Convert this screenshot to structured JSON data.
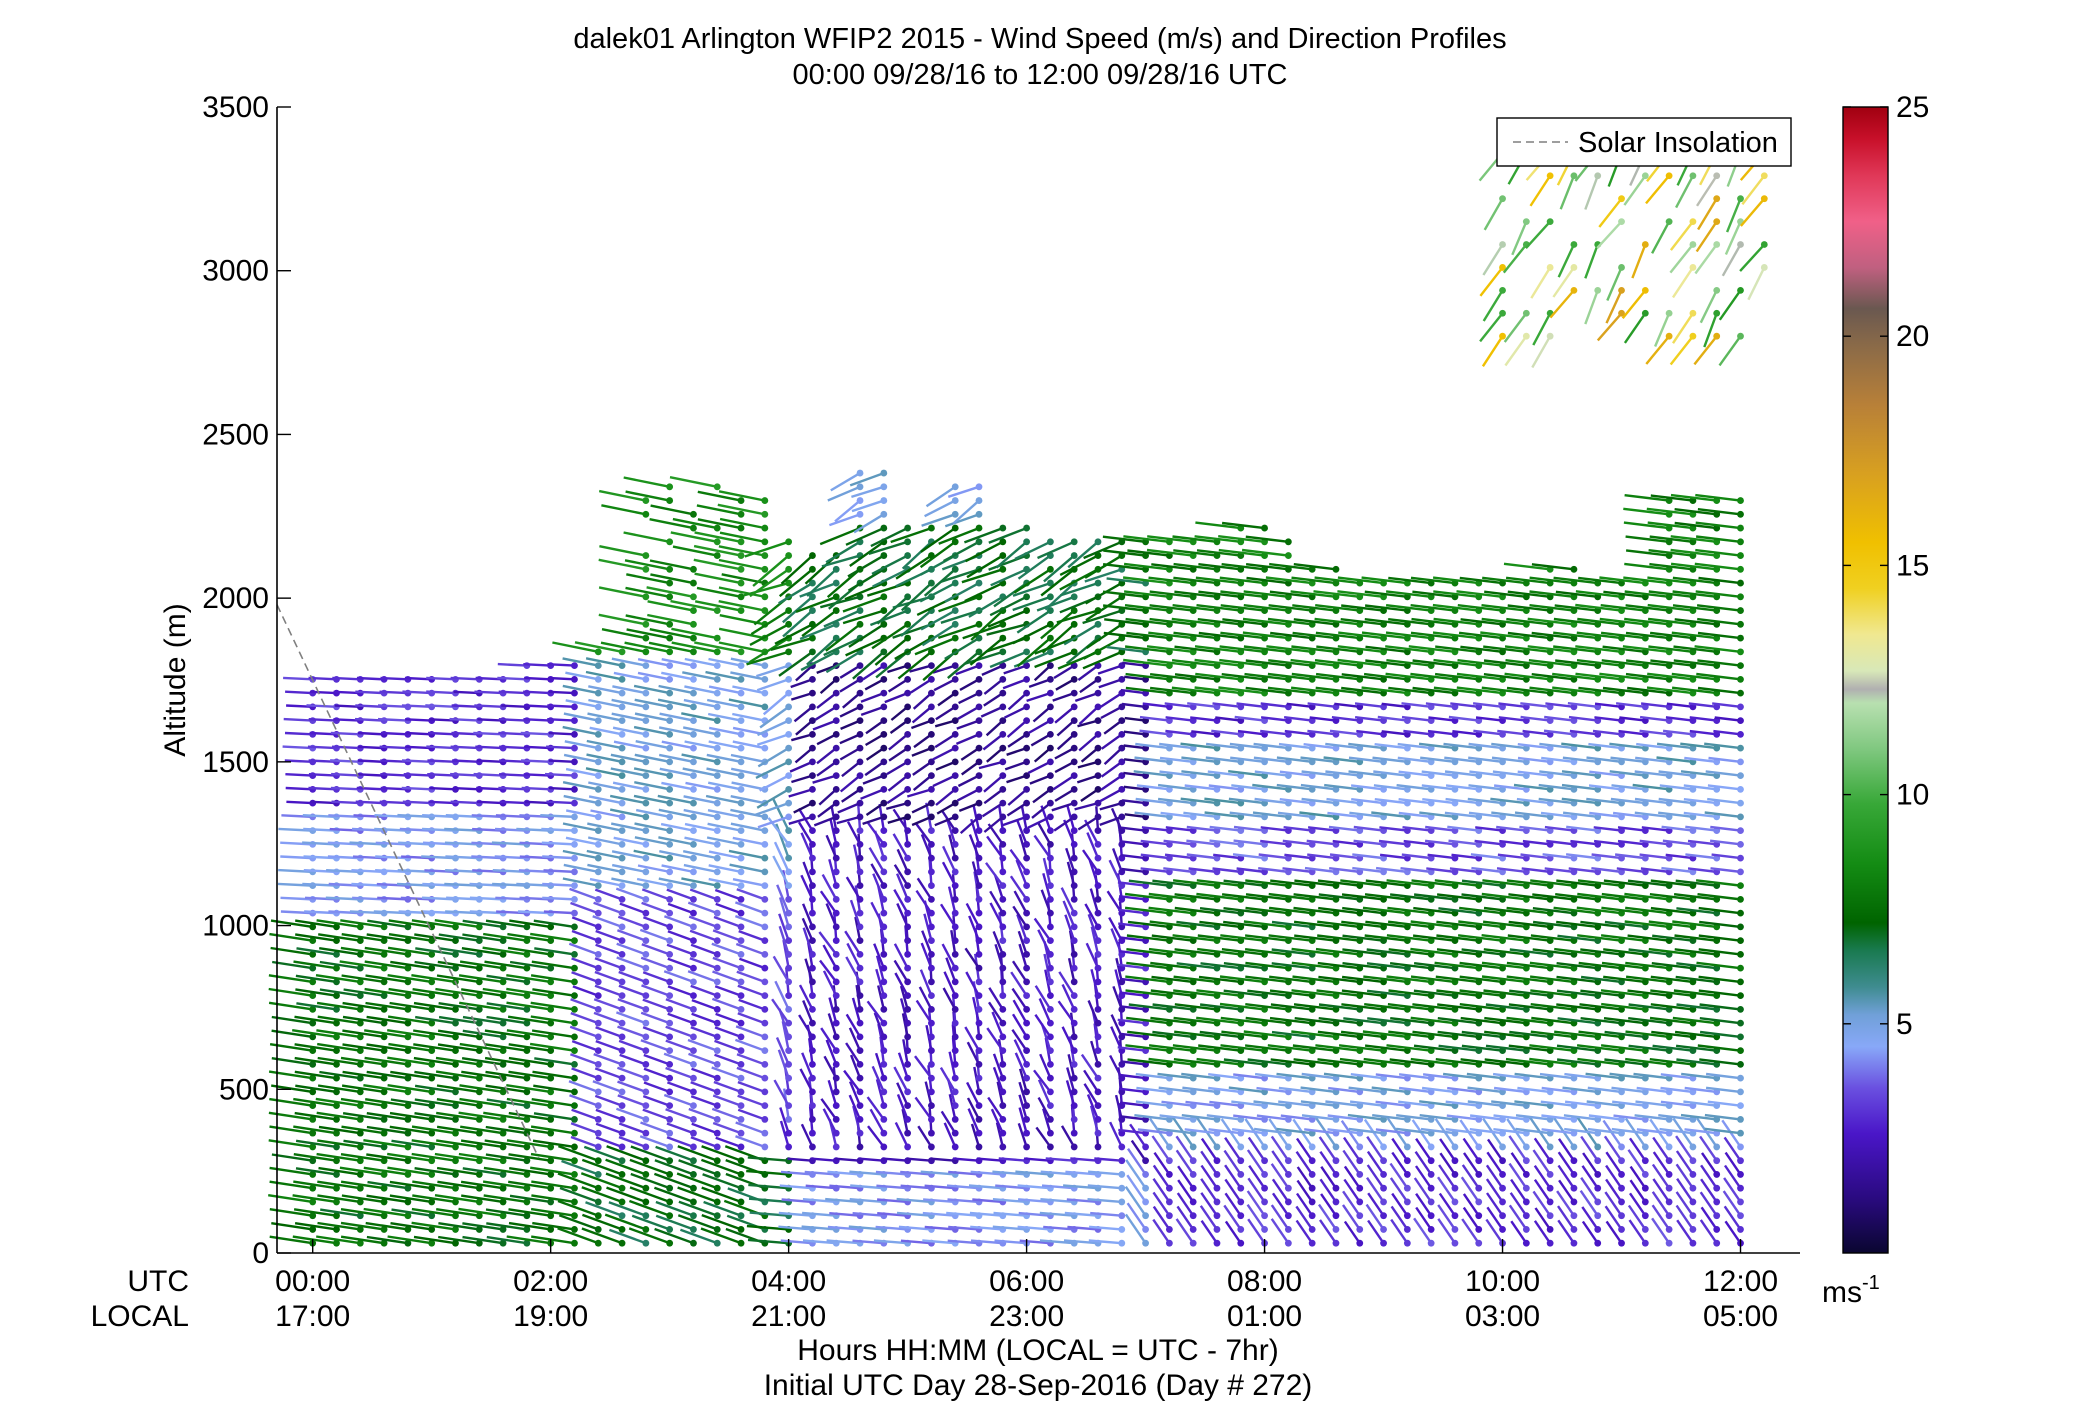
{
  "chart_data": {
    "type": "barb",
    "title": "dalek01 Arlington WFIP2 2015 - Wind Speed (m/s) and Direction Profiles",
    "subtitle": "00:00 09/28/16 to 12:00 09/28/16  UTC",
    "ylabel": "Altitude (m)",
    "xlabel": "Hours HH:MM  (LOCAL = UTC - 7hr)",
    "xlabel2": "Initial UTC Day 28-Sep-2016 (Day # 272)",
    "row_labels": {
      "utc": "UTC",
      "local": "LOCAL"
    },
    "ylim": [
      0,
      3500
    ],
    "yticks": [
      "0",
      "500",
      "1000",
      "1500",
      "2000",
      "2500",
      "3000",
      "3500"
    ],
    "ytick_values": [
      0,
      500,
      1000,
      1500,
      2000,
      2500,
      3000,
      3500
    ],
    "xlim_hours": [
      -0.3,
      12.5
    ],
    "xtick_hours": [
      0,
      2,
      4,
      6,
      8,
      10,
      12
    ],
    "xticks_utc": [
      "00:00",
      "02:00",
      "04:00",
      "06:00",
      "08:00",
      "10:00",
      "12:00"
    ],
    "xticks_local": [
      "17:00",
      "19:00",
      "21:00",
      "23:00",
      "01:00",
      "03:00",
      "05:00"
    ],
    "legend": {
      "entries": [
        "Solar Insolation"
      ],
      "placement": "top-right"
    },
    "solar_insolation": {
      "x_hours": [
        -0.3,
        1.9
      ],
      "altitude_m": [
        1980,
        290
      ],
      "style": "dashed",
      "color": "#7f7f7f"
    },
    "colorbar": {
      "range": [
        0,
        25
      ],
      "ticks": [
        "5",
        "10",
        "15",
        "20",
        "25"
      ],
      "tick_values": [
        5,
        10,
        15,
        20,
        25
      ],
      "unit": "ms",
      "unit_exp": "-1",
      "stops": [
        {
          "v": 0,
          "c": "#0a0630"
        },
        {
          "v": 1.2,
          "c": "#2a0a80"
        },
        {
          "v": 2.6,
          "c": "#4a16c8"
        },
        {
          "v": 3.6,
          "c": "#6a50e0"
        },
        {
          "v": 4.5,
          "c": "#88a8f8"
        },
        {
          "v": 5.2,
          "c": "#70a0d8"
        },
        {
          "v": 5.8,
          "c": "#3f8c90"
        },
        {
          "v": 6.6,
          "c": "#1a7a50"
        },
        {
          "v": 7.2,
          "c": "#006400"
        },
        {
          "v": 8.5,
          "c": "#148c14"
        },
        {
          "v": 9.8,
          "c": "#38a838"
        },
        {
          "v": 11.0,
          "c": "#80c880"
        },
        {
          "v": 12.0,
          "c": "#b8e0b0"
        },
        {
          "v": 12.3,
          "c": "#b0b0b0"
        },
        {
          "v": 12.7,
          "c": "#d8e8b8"
        },
        {
          "v": 13.5,
          "c": "#f0e890"
        },
        {
          "v": 14.5,
          "c": "#f0d020"
        },
        {
          "v": 15.5,
          "c": "#f0c000"
        },
        {
          "v": 17.0,
          "c": "#d8a020"
        },
        {
          "v": 18.5,
          "c": "#b88038"
        },
        {
          "v": 19.8,
          "c": "#8a6a48"
        },
        {
          "v": 20.6,
          "c": "#6a5850"
        },
        {
          "v": 21.5,
          "c": "#c06080"
        },
        {
          "v": 22.5,
          "c": "#f06088"
        },
        {
          "v": 23.5,
          "c": "#e03858"
        },
        {
          "v": 24.3,
          "c": "#c8102a"
        },
        {
          "v": 25,
          "c": "#a00010"
        }
      ]
    },
    "barbs": {
      "time_start_hours": 0,
      "time_step_hours": 0.2,
      "time_steps": 61,
      "altitude_start_m": 30,
      "altitude_step_m": 42,
      "profile_top_m": [
        1770,
        1770,
        1770,
        1770,
        1770,
        1770,
        1770,
        1780,
        1790,
        1800,
        1810,
        1810,
        1840,
        1840,
        2380,
        2380,
        2380,
        2360,
        2330,
        2300,
        2200,
        2160,
        2160,
        2400,
        2400,
        2250,
        2250,
        2380,
        2380,
        2250,
        2250,
        2190,
        2190,
        2190,
        2190,
        2190,
        2190,
        2190,
        2200,
        2250,
        2250,
        2200,
        2120,
        2120,
        2080,
        2080,
        2080,
        2080,
        2080,
        2080,
        2080,
        2080,
        2120,
        2120,
        2080,
        2080,
        2080,
        2330,
        2330,
        2330,
        2330
      ],
      "upper_cluster": {
        "time_hours": [
          10.0,
          12.2
        ],
        "altitude_m": [
          2800,
          3450
        ],
        "speed_range_ms": [
          9,
          17
        ]
      },
      "speed_regimes": [
        {
          "time_hours": [
            0,
            2.4
          ],
          "altitude_m": [
            0,
            1000
          ],
          "speed_ms": 7.5
        },
        {
          "time_hours": [
            0,
            2.4
          ],
          "altitude_m": [
            1000,
            1350
          ],
          "speed_ms": 4.5
        },
        {
          "time_hours": [
            0,
            2.4
          ],
          "altitude_m": [
            1350,
            1800
          ],
          "speed_ms": 3.0
        },
        {
          "time_hours": [
            2.4,
            4.0
          ],
          "altitude_m": [
            0,
            300
          ],
          "speed_ms": 7.0
        },
        {
          "time_hours": [
            2.4,
            4.0
          ],
          "altitude_m": [
            300,
            1100
          ],
          "speed_ms": 3.4
        },
        {
          "time_hours": [
            2.4,
            4.0
          ],
          "altitude_m": [
            1100,
            1800
          ],
          "speed_ms": 5.0
        },
        {
          "time_hours": [
            2.4,
            4.0
          ],
          "altitude_m": [
            1800,
            2400
          ],
          "speed_ms": 8.5
        },
        {
          "time_hours": [
            4.0,
            7.0
          ],
          "altitude_m": [
            0,
            250
          ],
          "speed_ms": 4.5
        },
        {
          "time_hours": [
            4.0,
            7.0
          ],
          "altitude_m": [
            250,
            1300
          ],
          "speed_ms": 2.5
        },
        {
          "time_hours": [
            4.0,
            7.0
          ],
          "altitude_m": [
            1300,
            1800
          ],
          "speed_ms": 1.5
        },
        {
          "time_hours": [
            4.0,
            7.0
          ],
          "altitude_m": [
            1800,
            2250
          ],
          "speed_ms": 7.0
        },
        {
          "time_hours": [
            7.0,
            12.2
          ],
          "altitude_m": [
            0,
            300
          ],
          "speed_ms": 3.0
        },
        {
          "time_hours": [
            7.0,
            12.2
          ],
          "altitude_m": [
            300,
            550
          ],
          "speed_ms": 4.8
        },
        {
          "time_hours": [
            7.0,
            12.2
          ],
          "altitude_m": [
            550,
            1150
          ],
          "speed_ms": 7.5
        },
        {
          "time_hours": [
            7.0,
            12.2
          ],
          "altitude_m": [
            1150,
            1300
          ],
          "speed_ms": 3.5
        },
        {
          "time_hours": [
            7.0,
            12.2
          ],
          "altitude_m": [
            1300,
            1550
          ],
          "speed_ms": 5.0
        },
        {
          "time_hours": [
            7.0,
            12.2
          ],
          "altitude_m": [
            1550,
            1700
          ],
          "speed_ms": 3.0
        },
        {
          "time_hours": [
            7.0,
            12.2
          ],
          "altitude_m": [
            1700,
            2350
          ],
          "speed_ms": 8.0
        }
      ]
    }
  }
}
